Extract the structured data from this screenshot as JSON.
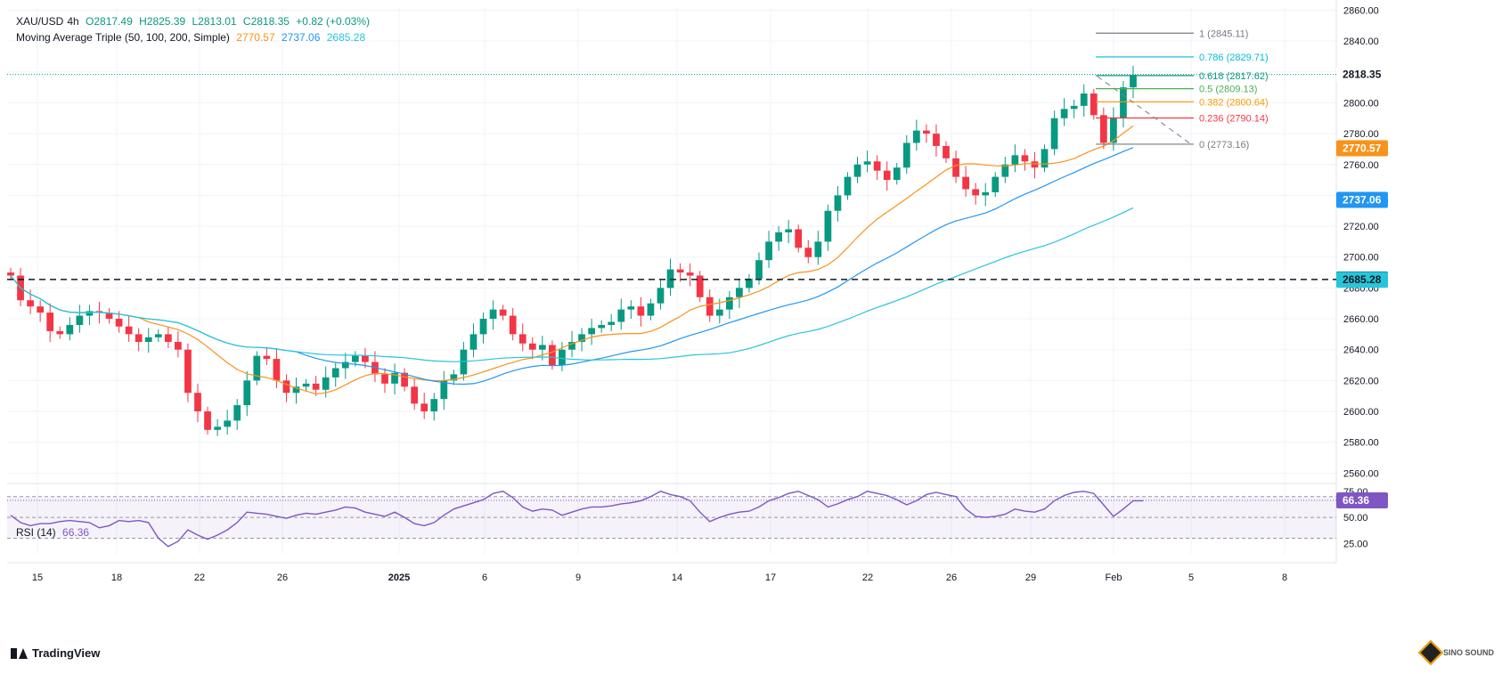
{
  "header": {
    "symbol": "XAU/USD",
    "timeframe": "4h",
    "open": "O2817.49",
    "high": "H2825.39",
    "low": "L2813.01",
    "close": "C2818.35",
    "change": "+0.82 (+0.03%)",
    "ma_label": "Moving Average Triple (50, 100, 200, Simple)",
    "ma50": "2770.57",
    "ma100": "2737.06",
    "ma200": "2685.28"
  },
  "rsi_label": "RSI (14)",
  "rsi_value": "66.36",
  "brand": "TradingView",
  "watermark_text": "SINO SOUND",
  "colors": {
    "up": "#089981",
    "down": "#f23645",
    "ma50": "#f7931a",
    "ma100": "#2196f3",
    "ma200": "#26c6da",
    "rsi": "#7e57c2",
    "grid": "#f0f3fa"
  },
  "chart_data": {
    "type": "candlestick",
    "title": "XAU/USD, 4h",
    "y_axis_ticks": [
      2560,
      2580,
      2600,
      2620,
      2640,
      2660,
      2680,
      2700,
      2720,
      2740,
      2760,
      2780,
      2800,
      2820,
      2840,
      2860
    ],
    "ylim": [
      2555,
      2862
    ],
    "x_tick_labels": [
      "15",
      "18",
      "22",
      "26",
      "2025",
      "6",
      "9",
      "14",
      "17",
      "22",
      "26",
      "29",
      "Feb",
      "5",
      "8"
    ],
    "price_levels": {
      "last_price": "2818.35",
      "ma50": "2770.57",
      "ma100": "2737.06",
      "ma200": "2685.28",
      "horizontal_line": "2685.51"
    },
    "fibonacci": [
      {
        "label": "1 (2845.11)",
        "value": 2845.11,
        "color": "#787b86"
      },
      {
        "label": "0.786 (2829.71)",
        "value": 2829.71,
        "color": "#00bcd4"
      },
      {
        "label": "0.618 (2817.62)",
        "value": 2817.62,
        "color": "#089981"
      },
      {
        "label": "0.5 (2809.13)",
        "value": 2809.13,
        "color": "#4caf50"
      },
      {
        "label": "0.382 (2800.64)",
        "value": 2800.64,
        "color": "#ff9800"
      },
      {
        "label": "0.236 (2790.14)",
        "value": 2790.14,
        "color": "#f23645"
      },
      {
        "label": "0 (2773.16)",
        "value": 2773.16,
        "color": "#787b86"
      }
    ],
    "close_path": [
      2688,
      2672,
      2668,
      2664,
      2652,
      2650,
      2656,
      2662,
      2665,
      2664,
      2660,
      2655,
      2650,
      2645,
      2648,
      2650,
      2645,
      2640,
      2612,
      2600,
      2588,
      2590,
      2594,
      2604,
      2620,
      2636,
      2634,
      2620,
      2612,
      2616,
      2618,
      2614,
      2622,
      2628,
      2632,
      2636,
      2632,
      2624,
      2618,
      2625,
      2616,
      2605,
      2600,
      2608,
      2620,
      2624,
      2640,
      2650,
      2660,
      2666,
      2662,
      2650,
      2644,
      2640,
      2643,
      2630,
      2640,
      2645,
      2650,
      2654,
      2656,
      2658,
      2666,
      2668,
      2662,
      2670,
      2680,
      2692,
      2690,
      2688,
      2674,
      2662,
      2666,
      2674,
      2680,
      2686,
      2698,
      2710,
      2716,
      2718,
      2706,
      2700,
      2710,
      2730,
      2740,
      2752,
      2760,
      2762,
      2756,
      2750,
      2758,
      2774,
      2782,
      2780,
      2772,
      2764,
      2752,
      2744,
      2740,
      2742,
      2752,
      2760,
      2766,
      2762,
      2758,
      2770,
      2790,
      2796,
      2798,
      2806,
      2792,
      2774,
      2790,
      2810,
      2818
    ],
    "rsi_ylim": [
      15,
      80
    ],
    "rsi_ticks": [
      25,
      50,
      75
    ],
    "rsi_path": [
      52,
      45,
      42,
      44,
      44,
      46,
      47,
      46,
      45,
      40,
      42,
      47,
      46,
      47,
      45,
      30,
      22,
      27,
      38,
      33,
      29,
      33,
      38,
      45,
      55,
      54,
      53,
      51,
      49,
      52,
      54,
      53,
      55,
      57,
      60,
      59,
      55,
      53,
      51,
      55,
      50,
      44,
      42,
      45,
      52,
      58,
      61,
      64,
      67,
      73,
      75,
      69,
      60,
      56,
      58,
      57,
      52,
      55,
      58,
      60,
      60,
      61,
      63,
      64,
      66,
      70,
      75,
      72,
      70,
      66,
      55,
      46,
      50,
      53,
      55,
      56,
      60,
      66,
      69,
      73,
      75,
      71,
      67,
      60,
      63,
      67,
      70,
      75,
      73,
      71,
      67,
      62,
      66,
      72,
      74,
      72,
      70,
      58,
      51,
      50,
      51,
      53,
      58,
      56,
      55,
      58,
      66,
      71,
      74,
      75,
      73,
      62,
      51,
      58,
      66,
      66
    ]
  }
}
